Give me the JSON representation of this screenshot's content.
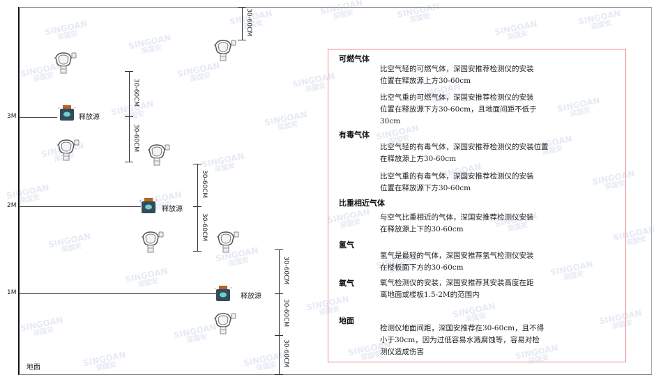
{
  "watermark": {
    "logo": "SINGOAN",
    "cn": "深国安"
  },
  "levels": {
    "l3": "3M",
    "l2": "2M",
    "l1": "1M",
    "ground": "地面"
  },
  "source_label": "释放源",
  "dimension_label": "30-60CM",
  "legend": {
    "sections": [
      {
        "heading": "可燃气体",
        "paragraphs": [
          "比空气轻的可燃气体，深国安推荐检测仪的安装\n位置在释放源上方30-60cm",
          "比空气重的可燃气体，深国安推荐检测仪的安装\n位置在释放源下方30-60cm，且地面间距不低于\n30cm"
        ]
      },
      {
        "heading": "有毒气体",
        "paragraphs": [
          "比空气轻的有毒气体，深国安推荐检测仪的安装位置\n在释放源上方30-60cm",
          "比空气重的有毒气体，深国安推荐检测仪的安装\n位置在释放源下方30-60cm"
        ]
      },
      {
        "heading": "比重相近气体",
        "paragraphs": [
          "与空气比重相近的气体，深国安推荐检测仪安装\n在释放源上下的30-60cm"
        ]
      },
      {
        "heading": "氢气",
        "paragraphs": [
          "氢气是最轻的气体，深国安推荐氢气检测仪安装\n在楼板面下方的30-60cm"
        ]
      },
      {
        "heading": "氧气",
        "paragraphs": [
          "氧气检测仪的安装，深国安推荐其安装高度在距\n离地面或楼板1.5-2M的范围内"
        ]
      },
      {
        "heading": "地面",
        "paragraphs": [
          "检测仪地面间距，深国安推荐在30-60cm，且不得\n小于30cm，因为过低容易水溅腐蚀等，容易对检\n测仪造成伤害"
        ]
      }
    ]
  }
}
